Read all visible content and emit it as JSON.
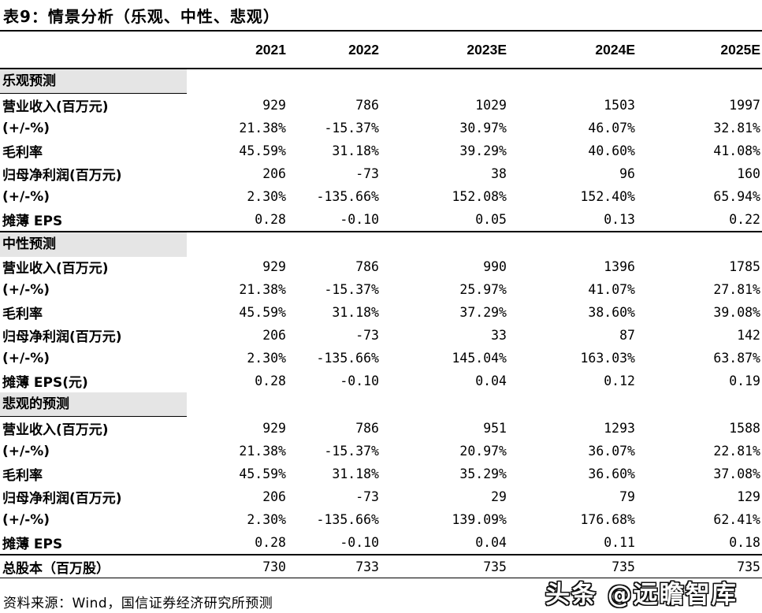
{
  "title": "表9：情景分析（乐观、中性、悲观）",
  "colors": {
    "section_header_bg": "#e5e5e5",
    "text": "#000000",
    "rule_lines": "#000000",
    "watermark_fill": "#ffffff",
    "watermark_outline": "#111111"
  },
  "table": {
    "year_headers": [
      "2021",
      "2022",
      "2023E",
      "2024E",
      "2025E"
    ],
    "sections": [
      {
        "label": "乐观预测",
        "label_underline": true,
        "top_divider": false,
        "rows": [
          {
            "label": "营业收入(百万元)",
            "values": [
              "929",
              "786",
              "1029",
              "1503",
              "1997"
            ]
          },
          {
            "label": "(+/-%)",
            "values": [
              "21.38%",
              "-15.37%",
              "30.97%",
              "46.07%",
              "32.81%"
            ]
          },
          {
            "label": "毛利率",
            "values": [
              "45.59%",
              "31.18%",
              "39.29%",
              "40.60%",
              "41.08%"
            ]
          },
          {
            "label": "归母净利润(百万元)",
            "values": [
              "206",
              "-73",
              "38",
              "96",
              "160"
            ]
          },
          {
            "label": "(+/-%)",
            "values": [
              "2.30%",
              "-135.66%",
              "152.08%",
              "152.40%",
              "65.94%"
            ]
          },
          {
            "label": "摊薄 EPS",
            "values": [
              "0.28",
              "-0.10",
              "0.05",
              "0.13",
              "0.22"
            ]
          }
        ]
      },
      {
        "label": "中性预测",
        "label_underline": false,
        "top_divider": true,
        "rows": [
          {
            "label": "营业收入(百万元)",
            "values": [
              "929",
              "786",
              "990",
              "1396",
              "1785"
            ]
          },
          {
            "label": "(+/-%)",
            "values": [
              "21.38%",
              "-15.37%",
              "25.97%",
              "41.07%",
              "27.81%"
            ]
          },
          {
            "label": "毛利率",
            "values": [
              "45.59%",
              "31.18%",
              "37.29%",
              "38.60%",
              "39.08%"
            ]
          },
          {
            "label": "归母净利润(百万元)",
            "values": [
              "206",
              "-73",
              "33",
              "87",
              "142"
            ]
          },
          {
            "label": "(+/-%)",
            "values": [
              "2.30%",
              "-135.66%",
              "145.04%",
              "163.03%",
              "63.87%"
            ]
          },
          {
            "label": "摊薄 EPS(元)",
            "values": [
              "0.28",
              "-0.10",
              "0.04",
              "0.12",
              "0.19"
            ]
          }
        ]
      },
      {
        "label": "悲观的预测",
        "label_underline": true,
        "top_divider": false,
        "rows": [
          {
            "label": "营业收入(百万元)",
            "values": [
              "929",
              "786",
              "951",
              "1293",
              "1588"
            ]
          },
          {
            "label": "(+/-%)",
            "values": [
              "21.38%",
              "-15.37%",
              "20.97%",
              "36.07%",
              "22.81%"
            ]
          },
          {
            "label": "毛利率",
            "values": [
              "45.59%",
              "31.18%",
              "35.29%",
              "36.60%",
              "37.08%"
            ]
          },
          {
            "label": "归母净利润(百万元)",
            "values": [
              "206",
              "-73",
              "29",
              "79",
              "129"
            ]
          },
          {
            "label": "(+/-%)",
            "values": [
              "2.30%",
              "-135.66%",
              "139.09%",
              "176.68%",
              "62.41%"
            ]
          },
          {
            "label": "摊薄 EPS",
            "values": [
              "0.28",
              "-0.10",
              "0.04",
              "0.11",
              "0.18"
            ]
          }
        ]
      }
    ],
    "total_row": {
      "label": "总股本（百万股）",
      "values": [
        "730",
        "733",
        "735",
        "735",
        "735"
      ]
    }
  },
  "source_note": "资料来源：Wind，国信证券经济研究所预测",
  "watermark": "头条 @远瞻智库"
}
